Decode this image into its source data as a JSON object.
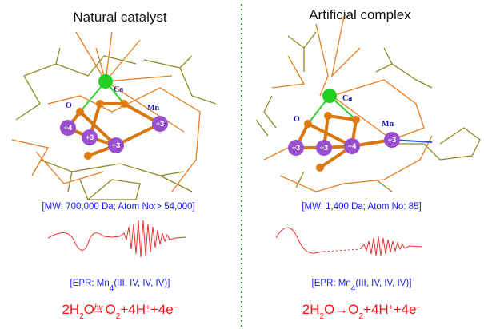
{
  "panels": [
    {
      "title": "Natural catalyst",
      "atom_labels": [
        "Ca",
        "O",
        "Mn",
        "+4",
        "+3",
        "+3",
        "+3"
      ],
      "mw": "[MW: 700,000 Da; Atom No:> 54,000]",
      "epr": [
        "[EPR: Mn",
        "4",
        "(III, IV, IV, IV)]"
      ],
      "equation": [
        "2H",
        "2",
        "O",
        "hν",
        "→",
        "O",
        "2",
        "+4H",
        "+",
        "+4e",
        "−"
      ]
    },
    {
      "title": "Artificial complex",
      "atom_labels": [
        "Ca",
        "O",
        "Mn",
        "+3",
        "+3",
        "+4",
        "+3"
      ],
      "mw": "[MW: 1,400 Da; Atom No: 85]",
      "epr": [
        "[EPR: Mn",
        "4",
        "(III, IV, IV, IV)]"
      ],
      "equation": [
        "2H",
        "2",
        "O→O",
        "",
        "2",
        "+4H",
        "+",
        "+4e",
        "−"
      ]
    }
  ]
}
